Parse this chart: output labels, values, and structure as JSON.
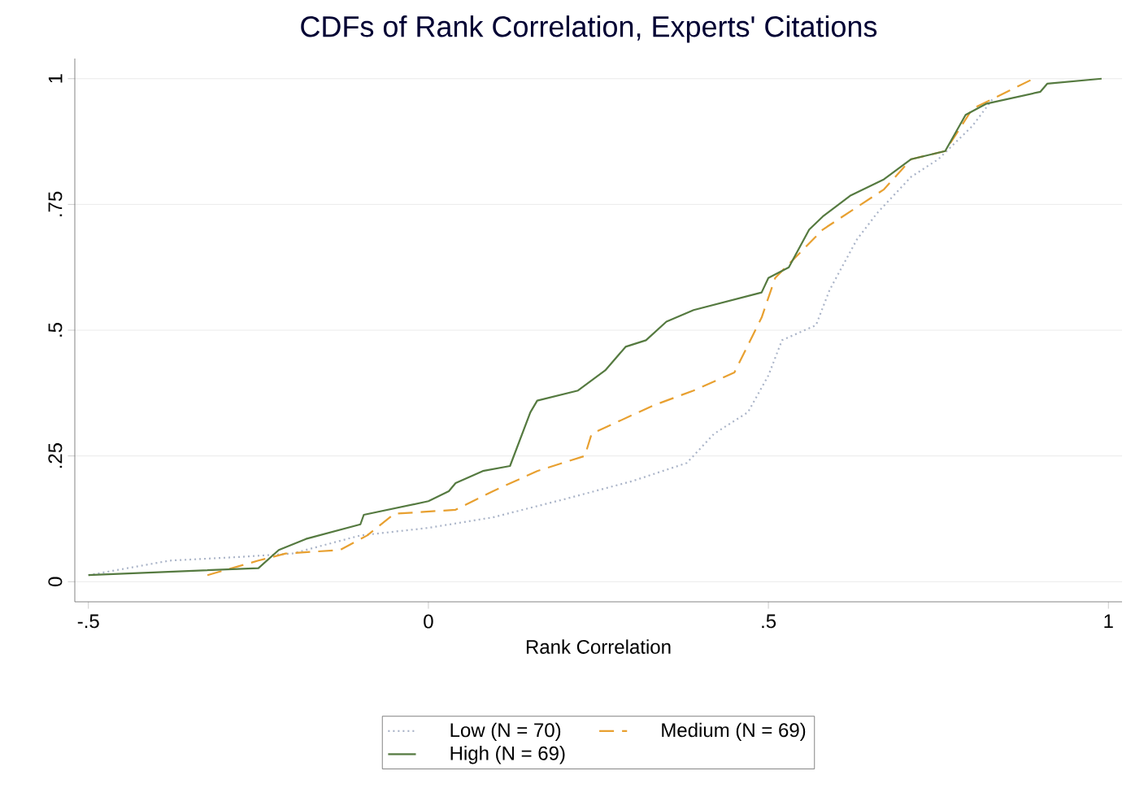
{
  "chart_data": {
    "type": "line",
    "title": "CDFs of Rank Correlation, Experts' Citations",
    "xlabel": "Rank Correlation",
    "xlim": [
      -0.52,
      1.02
    ],
    "ylim": [
      -0.04,
      1.04
    ],
    "xticks": [
      {
        "value": -0.5,
        "label": "-.5"
      },
      0,
      {
        "value": 0.5,
        "label": ".5"
      },
      1
    ],
    "yticks": [
      0,
      {
        "value": 0.25,
        "label": ".25"
      },
      {
        "value": 0.5,
        "label": ".5"
      },
      {
        "value": 0.75,
        "label": ".75"
      },
      1
    ],
    "grid": "y",
    "legend": "bottom",
    "marker": "none",
    "series": [
      {
        "name": "Low (N = 70)",
        "color": "#aab4c8",
        "line_style": "dotted",
        "x": [
          -0.5,
          -0.38,
          -0.28,
          -0.2,
          -0.1,
          0,
          0.095,
          0.2,
          0.3,
          0.38,
          0.42,
          0.47,
          0.5,
          0.52,
          0.57,
          0.59,
          0.63,
          0.66,
          0.71,
          0.75,
          0.8,
          0.83
        ],
        "values": [
          0.013,
          0.042,
          0.049,
          0.056,
          0.092,
          0.107,
          0.128,
          0.164,
          0.2,
          0.236,
          0.294,
          0.337,
          0.41,
          0.48,
          0.51,
          0.58,
          0.68,
          0.733,
          0.805,
          0.84,
          0.906,
          0.96
        ]
      },
      {
        "name": "Medium (N = 69)",
        "color": "#e8a030",
        "line_style": "dashed",
        "x": [
          -0.325,
          -0.25,
          -0.21,
          -0.13,
          -0.09,
          -0.05,
          0.04,
          0.095,
          0.16,
          0.23,
          0.24,
          0.33,
          0.39,
          0.45,
          0.49,
          0.51,
          0.58,
          0.67,
          0.71,
          0.76,
          0.8,
          0.89
        ],
        "values": [
          0.013,
          0.042,
          0.056,
          0.063,
          0.092,
          0.135,
          0.143,
          0.18,
          0.22,
          0.25,
          0.294,
          0.35,
          0.38,
          0.416,
          0.525,
          0.604,
          0.7,
          0.78,
          0.84,
          0.856,
          0.94,
          1.0
        ]
      },
      {
        "name": "High (N = 69)",
        "color": "#557a40",
        "line_style": "solid",
        "x": [
          -0.5,
          -0.25,
          -0.22,
          -0.18,
          -0.1,
          -0.095,
          0,
          0.03,
          0.04,
          0.08,
          0.12,
          0.15,
          0.16,
          0.22,
          0.26,
          0.29,
          0.32,
          0.35,
          0.39,
          0.49,
          0.5,
          0.53,
          0.56,
          0.58,
          0.62,
          0.67,
          0.71,
          0.76,
          0.79,
          0.82,
          0.9,
          0.91,
          0.99
        ],
        "values": [
          0.013,
          0.027,
          0.063,
          0.085,
          0.114,
          0.133,
          0.16,
          0.18,
          0.196,
          0.22,
          0.23,
          0.337,
          0.36,
          0.38,
          0.42,
          0.467,
          0.48,
          0.517,
          0.54,
          0.575,
          0.604,
          0.625,
          0.7,
          0.726,
          0.767,
          0.8,
          0.84,
          0.856,
          0.928,
          0.95,
          0.974,
          0.99,
          1.0
        ]
      }
    ]
  }
}
